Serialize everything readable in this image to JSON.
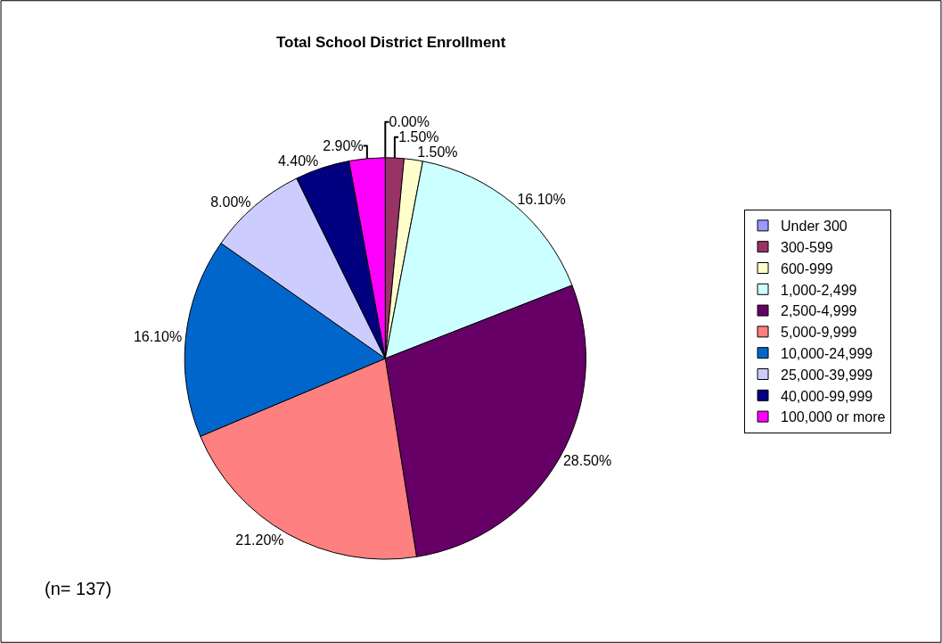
{
  "chart_data": {
    "type": "pie",
    "title": "Total School District Enrollment",
    "categories": [
      "Under 300",
      "300-599",
      "600-999",
      "1,000-2,499",
      "2,500-4,999",
      "5,000-9,999",
      "10,000-24,999",
      "25,000-39,999",
      "40,000-99,999",
      "100,000 or more"
    ],
    "values": [
      0.0,
      1.5,
      1.5,
      16.1,
      28.5,
      21.2,
      16.1,
      8.0,
      4.4,
      2.9
    ],
    "value_labels": [
      "0.00%",
      "1.50%",
      "1.50%",
      "16.10%",
      "28.50%",
      "21.20%",
      "16.10%",
      "8.00%",
      "4.40%",
      "2.90%"
    ],
    "colors": [
      "#9999ff",
      "#993366",
      "#ffffcc",
      "#ccffff",
      "#660066",
      "#ff8080",
      "#0066cc",
      "#ccccff",
      "#000080",
      "#ff00ff"
    ],
    "legend": "right",
    "annotations": [
      "(n= 137)"
    ]
  }
}
